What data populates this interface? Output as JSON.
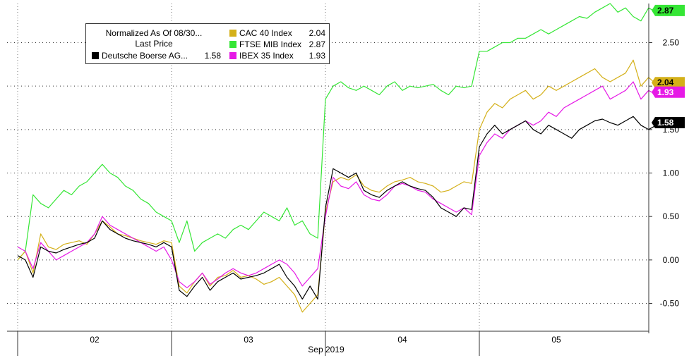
{
  "chart_data": {
    "type": "line",
    "legend": {
      "header_line1": "Normalized As Of 08/30...",
      "header_line2": "Last Price",
      "placement": "top-left"
    },
    "x_axis": {
      "label": "Sep 2019",
      "tick_labels": [
        "02",
        "03",
        "04",
        "05"
      ],
      "day_separators": true
    },
    "y_axis": {
      "position": "right",
      "range": [
        -0.82,
        2.95
      ],
      "ticks": [
        -0.5,
        0.0,
        0.5,
        1.0,
        1.5,
        2.0,
        2.5
      ],
      "tick_labels": [
        "-0.50",
        "0.00",
        "0.50",
        "1.00",
        "1.50",
        "2.00",
        "2.50"
      ]
    },
    "grid": "horizontal dotted",
    "series": [
      {
        "name": "Deutsche Boerse AG...",
        "legend_label": "Deutsche Boerse AG...",
        "value_label": "1.58",
        "last": 1.58,
        "color": "#000000",
        "x": [
          0.0,
          0.05,
          0.1,
          0.15,
          0.2,
          0.25,
          0.3,
          0.35,
          0.4,
          0.45,
          0.5,
          0.55,
          0.6,
          0.65,
          0.7,
          0.75,
          0.8,
          0.85,
          0.9,
          0.95,
          1.0,
          1.05,
          1.1,
          1.15,
          1.2,
          1.25,
          1.3,
          1.35,
          1.4,
          1.45,
          1.5,
          1.55,
          1.6,
          1.65,
          1.7,
          1.75,
          1.8,
          1.85,
          1.9,
          1.95,
          2.0,
          2.05,
          2.1,
          2.15,
          2.2,
          2.25,
          2.3,
          2.35,
          2.4,
          2.45,
          2.5,
          2.55,
          2.6,
          2.65,
          2.7,
          2.75,
          2.8,
          2.85,
          2.9,
          2.95,
          3.0,
          3.05,
          3.1,
          3.15,
          3.2,
          3.25,
          3.3,
          3.35,
          3.4,
          3.45,
          3.5,
          3.55,
          3.6,
          3.65,
          3.7,
          3.75,
          3.8,
          3.85,
          3.9,
          3.95,
          4.0,
          4.05,
          4.1,
          4.15,
          4.2
        ],
        "y": [
          0.05,
          0.0,
          -0.2,
          0.15,
          0.1,
          0.08,
          0.12,
          0.15,
          0.18,
          0.2,
          0.25,
          0.45,
          0.35,
          0.3,
          0.25,
          0.22,
          0.2,
          0.18,
          0.15,
          0.2,
          0.15,
          -0.35,
          -0.42,
          -0.3,
          -0.2,
          -0.35,
          -0.25,
          -0.2,
          -0.15,
          -0.22,
          -0.2,
          -0.18,
          -0.15,
          -0.1,
          -0.05,
          -0.2,
          -0.3,
          -0.45,
          -0.3,
          -0.45,
          0.6,
          1.05,
          1.0,
          0.95,
          1.0,
          0.8,
          0.75,
          0.72,
          0.8,
          0.85,
          0.9,
          0.85,
          0.82,
          0.8,
          0.72,
          0.6,
          0.55,
          0.5,
          0.6,
          0.58,
          1.3,
          1.45,
          1.55,
          1.45,
          1.5,
          1.55,
          1.6,
          1.5,
          1.45,
          1.55,
          1.5,
          1.45,
          1.4,
          1.5,
          1.55,
          1.6,
          1.62,
          1.58,
          1.55,
          1.6,
          1.65,
          1.55,
          1.5,
          1.55,
          1.58
        ]
      },
      {
        "name": "CAC 40 Index",
        "legend_label": "CAC 40 Index",
        "value_label": "2.04",
        "last": 2.04,
        "color": "#d4b019",
        "x": [
          0.0,
          0.05,
          0.1,
          0.15,
          0.2,
          0.25,
          0.3,
          0.35,
          0.4,
          0.45,
          0.5,
          0.55,
          0.6,
          0.65,
          0.7,
          0.75,
          0.8,
          0.85,
          0.9,
          0.95,
          1.0,
          1.05,
          1.1,
          1.15,
          1.2,
          1.25,
          1.3,
          1.35,
          1.4,
          1.45,
          1.5,
          1.55,
          1.6,
          1.65,
          1.7,
          1.75,
          1.8,
          1.85,
          1.9,
          1.95,
          2.0,
          2.05,
          2.1,
          2.15,
          2.2,
          2.25,
          2.3,
          2.35,
          2.4,
          2.45,
          2.5,
          2.55,
          2.6,
          2.65,
          2.7,
          2.75,
          2.8,
          2.85,
          2.9,
          2.95,
          3.0,
          3.05,
          3.1,
          3.15,
          3.2,
          3.25,
          3.3,
          3.35,
          3.4,
          3.45,
          3.5,
          3.55,
          3.6,
          3.65,
          3.7,
          3.75,
          3.8,
          3.85,
          3.9,
          3.95,
          4.0,
          4.05,
          4.1,
          4.15,
          4.2
        ],
        "y": [
          0.0,
          0.1,
          -0.15,
          0.3,
          0.15,
          0.12,
          0.18,
          0.2,
          0.22,
          0.18,
          0.3,
          0.45,
          0.38,
          0.3,
          0.28,
          0.25,
          0.22,
          0.2,
          0.18,
          0.22,
          0.2,
          -0.3,
          -0.38,
          -0.25,
          -0.15,
          -0.3,
          -0.2,
          -0.18,
          -0.12,
          -0.2,
          -0.18,
          -0.22,
          -0.28,
          -0.25,
          -0.2,
          -0.3,
          -0.4,
          -0.6,
          -0.5,
          -0.4,
          0.55,
          0.9,
          0.95,
          0.92,
          0.98,
          0.85,
          0.8,
          0.78,
          0.85,
          0.9,
          0.92,
          0.95,
          0.9,
          0.88,
          0.85,
          0.78,
          0.8,
          0.85,
          0.9,
          0.88,
          1.5,
          1.7,
          1.8,
          1.75,
          1.85,
          1.9,
          1.95,
          1.85,
          1.9,
          2.0,
          1.95,
          2.0,
          2.05,
          2.1,
          2.15,
          2.2,
          2.1,
          2.05,
          2.1,
          2.15,
          2.3,
          2.0,
          2.1,
          2.02,
          2.04
        ]
      },
      {
        "name": "FTSE MIB Index",
        "legend_label": "FTSE MIB Index",
        "value_label": "2.87",
        "last": 2.87,
        "color": "#35e635",
        "x": [
          0.0,
          0.05,
          0.1,
          0.15,
          0.2,
          0.25,
          0.3,
          0.35,
          0.4,
          0.45,
          0.5,
          0.55,
          0.6,
          0.65,
          0.7,
          0.75,
          0.8,
          0.85,
          0.9,
          0.95,
          1.0,
          1.05,
          1.1,
          1.15,
          1.2,
          1.25,
          1.3,
          1.35,
          1.4,
          1.45,
          1.5,
          1.55,
          1.6,
          1.65,
          1.7,
          1.75,
          1.8,
          1.85,
          1.9,
          1.95,
          2.0,
          2.05,
          2.1,
          2.15,
          2.2,
          2.25,
          2.3,
          2.35,
          2.4,
          2.45,
          2.5,
          2.55,
          2.6,
          2.65,
          2.7,
          2.75,
          2.8,
          2.85,
          2.9,
          2.95,
          3.0,
          3.05,
          3.1,
          3.15,
          3.2,
          3.25,
          3.3,
          3.35,
          3.4,
          3.45,
          3.5,
          3.55,
          3.6,
          3.65,
          3.7,
          3.75,
          3.8,
          3.85,
          3.9,
          3.95,
          4.0,
          4.05,
          4.1,
          4.15,
          4.2
        ],
        "y": [
          0.0,
          0.1,
          0.75,
          0.65,
          0.6,
          0.7,
          0.8,
          0.75,
          0.85,
          0.9,
          1.0,
          1.1,
          1.0,
          0.95,
          0.85,
          0.8,
          0.7,
          0.65,
          0.55,
          0.5,
          0.45,
          0.2,
          0.45,
          0.1,
          0.2,
          0.25,
          0.3,
          0.25,
          0.35,
          0.4,
          0.35,
          0.45,
          0.55,
          0.5,
          0.45,
          0.6,
          0.4,
          0.45,
          0.3,
          0.25,
          1.85,
          2.0,
          2.05,
          1.98,
          1.95,
          2.0,
          1.95,
          1.9,
          2.0,
          2.05,
          1.95,
          2.0,
          1.98,
          2.0,
          2.02,
          1.95,
          1.9,
          2.0,
          1.98,
          2.0,
          2.4,
          2.4,
          2.45,
          2.5,
          2.5,
          2.55,
          2.55,
          2.6,
          2.65,
          2.6,
          2.65,
          2.7,
          2.75,
          2.8,
          2.78,
          2.85,
          2.9,
          2.95,
          2.85,
          2.9,
          2.8,
          2.75,
          2.9,
          2.85,
          2.87
        ]
      },
      {
        "name": "IBEX 35 Index",
        "legend_label": "IBEX 35 Index",
        "value_label": "1.93",
        "last": 1.93,
        "color": "#e619e6",
        "x": [
          0.0,
          0.05,
          0.1,
          0.15,
          0.2,
          0.25,
          0.3,
          0.35,
          0.4,
          0.45,
          0.5,
          0.55,
          0.6,
          0.65,
          0.7,
          0.75,
          0.8,
          0.85,
          0.9,
          0.95,
          1.0,
          1.05,
          1.1,
          1.15,
          1.2,
          1.25,
          1.3,
          1.35,
          1.4,
          1.45,
          1.5,
          1.55,
          1.6,
          1.65,
          1.7,
          1.75,
          1.8,
          1.85,
          1.9,
          1.95,
          2.0,
          2.05,
          2.1,
          2.15,
          2.2,
          2.25,
          2.3,
          2.35,
          2.4,
          2.45,
          2.5,
          2.55,
          2.6,
          2.65,
          2.7,
          2.75,
          2.8,
          2.85,
          2.9,
          2.95,
          3.0,
          3.05,
          3.1,
          3.15,
          3.2,
          3.25,
          3.3,
          3.35,
          3.4,
          3.45,
          3.5,
          3.55,
          3.6,
          3.65,
          3.7,
          3.75,
          3.8,
          3.85,
          3.9,
          3.95,
          4.0,
          4.05,
          4.1,
          4.15,
          4.2
        ],
        "y": [
          0.15,
          0.1,
          -0.1,
          0.2,
          0.1,
          0.0,
          0.05,
          0.1,
          0.15,
          0.2,
          0.3,
          0.5,
          0.4,
          0.35,
          0.3,
          0.25,
          0.2,
          0.15,
          0.1,
          0.15,
          0.0,
          -0.25,
          -0.32,
          -0.25,
          -0.15,
          -0.28,
          -0.22,
          -0.15,
          -0.1,
          -0.15,
          -0.18,
          -0.15,
          -0.1,
          -0.05,
          0.0,
          -0.05,
          -0.15,
          -0.3,
          -0.2,
          -0.1,
          0.5,
          0.95,
          0.85,
          0.82,
          0.9,
          0.75,
          0.7,
          0.68,
          0.75,
          0.85,
          0.88,
          0.85,
          0.8,
          0.78,
          0.7,
          0.65,
          0.6,
          0.55,
          0.6,
          0.52,
          1.2,
          1.35,
          1.45,
          1.4,
          1.5,
          1.55,
          1.6,
          1.55,
          1.6,
          1.7,
          1.65,
          1.75,
          1.8,
          1.85,
          1.9,
          1.95,
          2.0,
          1.85,
          1.9,
          1.95,
          2.05,
          1.85,
          1.95,
          1.9,
          1.93
        ]
      }
    ]
  }
}
